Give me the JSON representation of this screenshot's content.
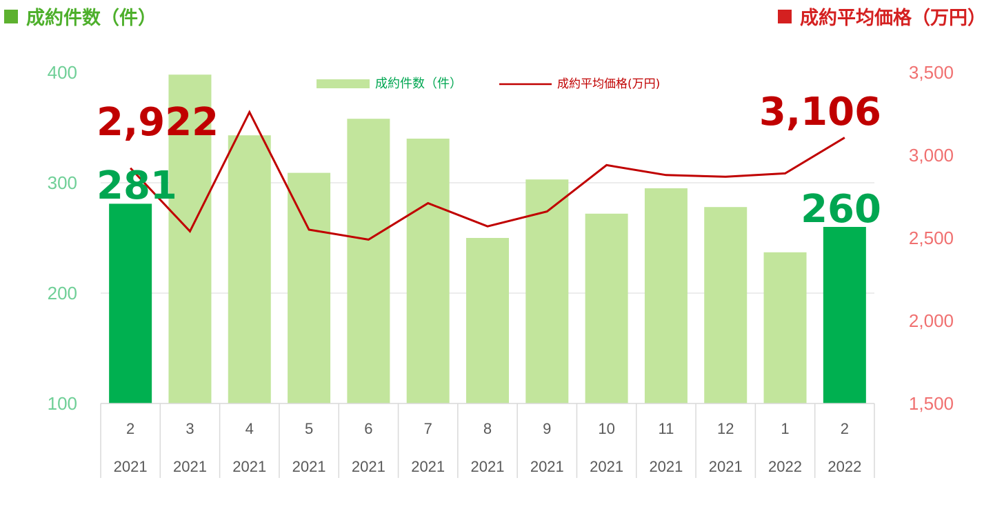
{
  "titles": {
    "left": "成約件数（件）",
    "right": "成約平均価格（万円）"
  },
  "colors": {
    "bar_light": "#c2e59c",
    "bar_highlight": "#00b050",
    "line": "#c00000",
    "left_axis": "#6fcf97",
    "right_axis": "#f07070",
    "grid": "#d9d9d9"
  },
  "chart_data": {
    "type": "bar",
    "categories": [
      "2",
      "3",
      "4",
      "5",
      "6",
      "7",
      "8",
      "9",
      "10",
      "11",
      "12",
      "1",
      "2"
    ],
    "years": [
      "2021",
      "2021",
      "2021",
      "2021",
      "2021",
      "2021",
      "2021",
      "2021",
      "2021",
      "2021",
      "2021",
      "2022",
      "2022"
    ],
    "series": [
      {
        "name": "成約件数（件）",
        "kind": "bar",
        "axis": "left",
        "values": [
          281,
          398,
          343,
          309,
          358,
          340,
          250,
          303,
          272,
          295,
          278,
          237,
          260
        ],
        "highlight": [
          0,
          12
        ]
      },
      {
        "name": "成約平均価格(万円)",
        "kind": "line",
        "axis": "right",
        "values": [
          2922,
          2540,
          3260,
          2550,
          2490,
          2710,
          2570,
          2660,
          2940,
          2880,
          2870,
          2890,
          3106
        ]
      }
    ],
    "left_axis": {
      "ylim": [
        100,
        400
      ],
      "ticks": [
        "100",
        "200",
        "300",
        "400"
      ]
    },
    "right_axis": {
      "ylim": [
        1500,
        3500
      ],
      "ticks": [
        "1,500",
        "2,000",
        "2,500",
        "3,000",
        "3,500"
      ]
    },
    "legend_position": "top-center",
    "grid": true,
    "callouts": {
      "first_price": "2,922",
      "last_price": "3,106",
      "first_count": "281",
      "last_count": "260"
    }
  }
}
